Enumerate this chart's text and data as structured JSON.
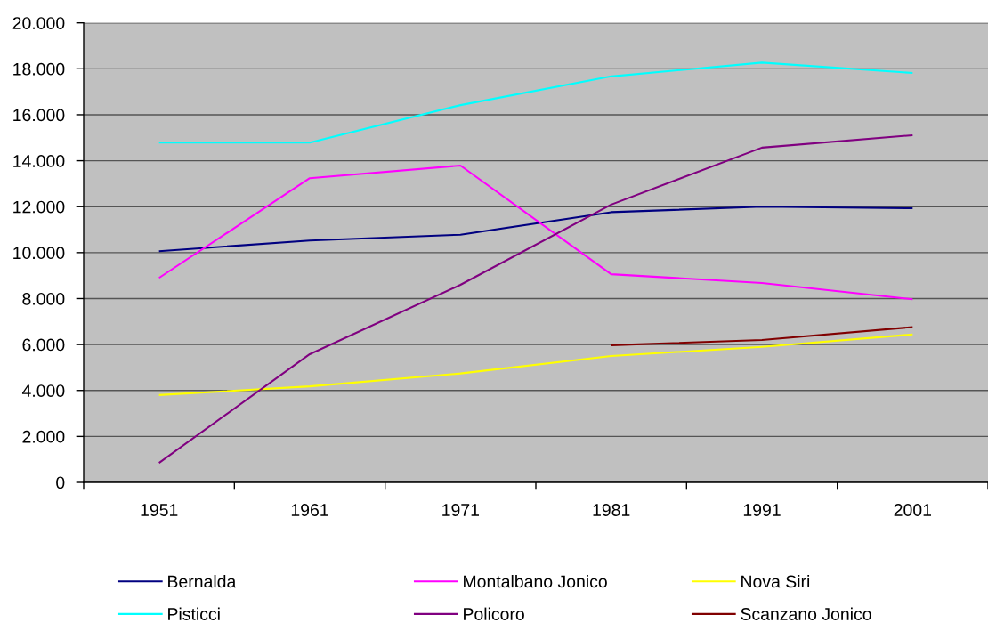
{
  "chart_data": {
    "type": "line",
    "categories": [
      "1951",
      "1961",
      "1971",
      "1981",
      "1991",
      "2001"
    ],
    "ylim": [
      0,
      20000
    ],
    "yticks": [
      0,
      {
        "value": 2000,
        "label": "2.000"
      },
      {
        "value": 4000,
        "label": "4.000"
      },
      {
        "value": 6000,
        "label": "6.000"
      },
      {
        "value": 8000,
        "label": "8.000"
      },
      {
        "value": 10000,
        "label": "10.000"
      },
      {
        "value": 12000,
        "label": "12.000"
      },
      {
        "value": 14000,
        "label": "14.000"
      },
      {
        "value": 16000,
        "label": "16.000"
      },
      {
        "value": 18000,
        "label": "18.000"
      },
      {
        "value": 20000,
        "label": "20.000"
      }
    ],
    "grid": "y",
    "legend": "bottom",
    "series": [
      {
        "name": "Bernalda",
        "color": "#000080",
        "values": [
          10060,
          10530,
          10780,
          11760,
          12000,
          11930
        ]
      },
      {
        "name": "Montalbano Jonico",
        "color": "#ff00ff",
        "values": [
          8900,
          13240,
          13790,
          9060,
          8680,
          7970
        ]
      },
      {
        "name": "Nova Siri",
        "color": "#ffff00",
        "values": [
          3800,
          4180,
          4740,
          5500,
          5900,
          6440
        ]
      },
      {
        "name": "Pisticci",
        "color": "#00ffff",
        "values": [
          14790,
          14790,
          16420,
          17670,
          18270,
          17820
        ]
      },
      {
        "name": "Policoro",
        "color": "#800080",
        "values": [
          850,
          5580,
          8600,
          12090,
          14570,
          15110
        ]
      },
      {
        "name": "Scanzano Jonico",
        "color": "#800000",
        "values": [
          null,
          null,
          null,
          5970,
          6200,
          6760
        ]
      }
    ]
  }
}
